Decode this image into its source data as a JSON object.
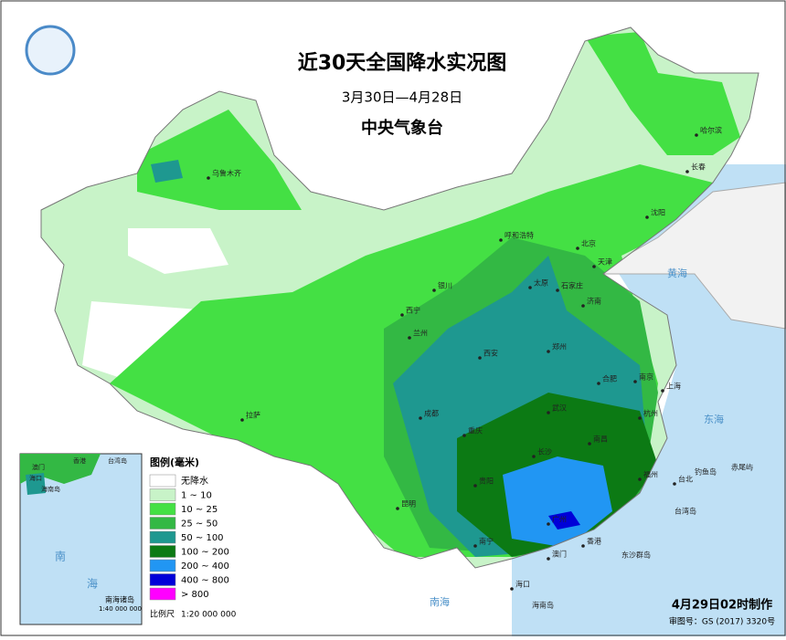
{
  "header": {
    "title": "近30天全国降水实况图",
    "date_range": "3月30日—4月28日",
    "agency": "中央气象台"
  },
  "legend": {
    "title": "图例(毫米)",
    "items": [
      {
        "label": "无降水",
        "color": "#ffffff"
      },
      {
        "label": "1 ~ 10",
        "color": "#c8f3c8"
      },
      {
        "label": "10 ~ 25",
        "color": "#44e044"
      },
      {
        "label": "25 ~ 50",
        "color": "#33b844"
      },
      {
        "label": "50 ~ 100",
        "color": "#1e9890"
      },
      {
        "label": "100 ~ 200",
        "color": "#0c7a14"
      },
      {
        "label": "200 ~ 400",
        "color": "#2196f3"
      },
      {
        "label": "400 ~ 800",
        "color": "#0000d8"
      },
      {
        "label": "> 800",
        "color": "#ff00ff"
      }
    ]
  },
  "scale": {
    "label": "比例尺",
    "value": "1:20 000 000"
  },
  "inset": {
    "title": "南海诸岛",
    "scale": "1:40 000 000",
    "labels": [
      "香港",
      "台湾岛",
      "澳门",
      "海口",
      "海南岛",
      "南",
      "海"
    ]
  },
  "cities": [
    "乌鲁木齐",
    "哈尔滨",
    "长春",
    "沈阳",
    "呼和浩特",
    "北京",
    "天津",
    "太原",
    "石家庄",
    "银川",
    "西宁",
    "兰州",
    "济南",
    "西安",
    "郑州",
    "合肥",
    "南京",
    "上海",
    "杭州",
    "武汉",
    "成都",
    "重庆",
    "长沙",
    "南昌",
    "福州",
    "台北",
    "贵阳",
    "昆明",
    "南宁",
    "广州",
    "香港",
    "澳门",
    "海口",
    "拉萨"
  ],
  "places": [
    "钓鱼岛",
    "赤尾屿",
    "东沙群岛",
    "海南岛",
    "台湾岛"
  ],
  "seas": [
    "黄海",
    "东海",
    "南海"
  ],
  "footer": {
    "made": "4月29日02时制作",
    "review": "审图号：GS (2017) 3320号"
  }
}
